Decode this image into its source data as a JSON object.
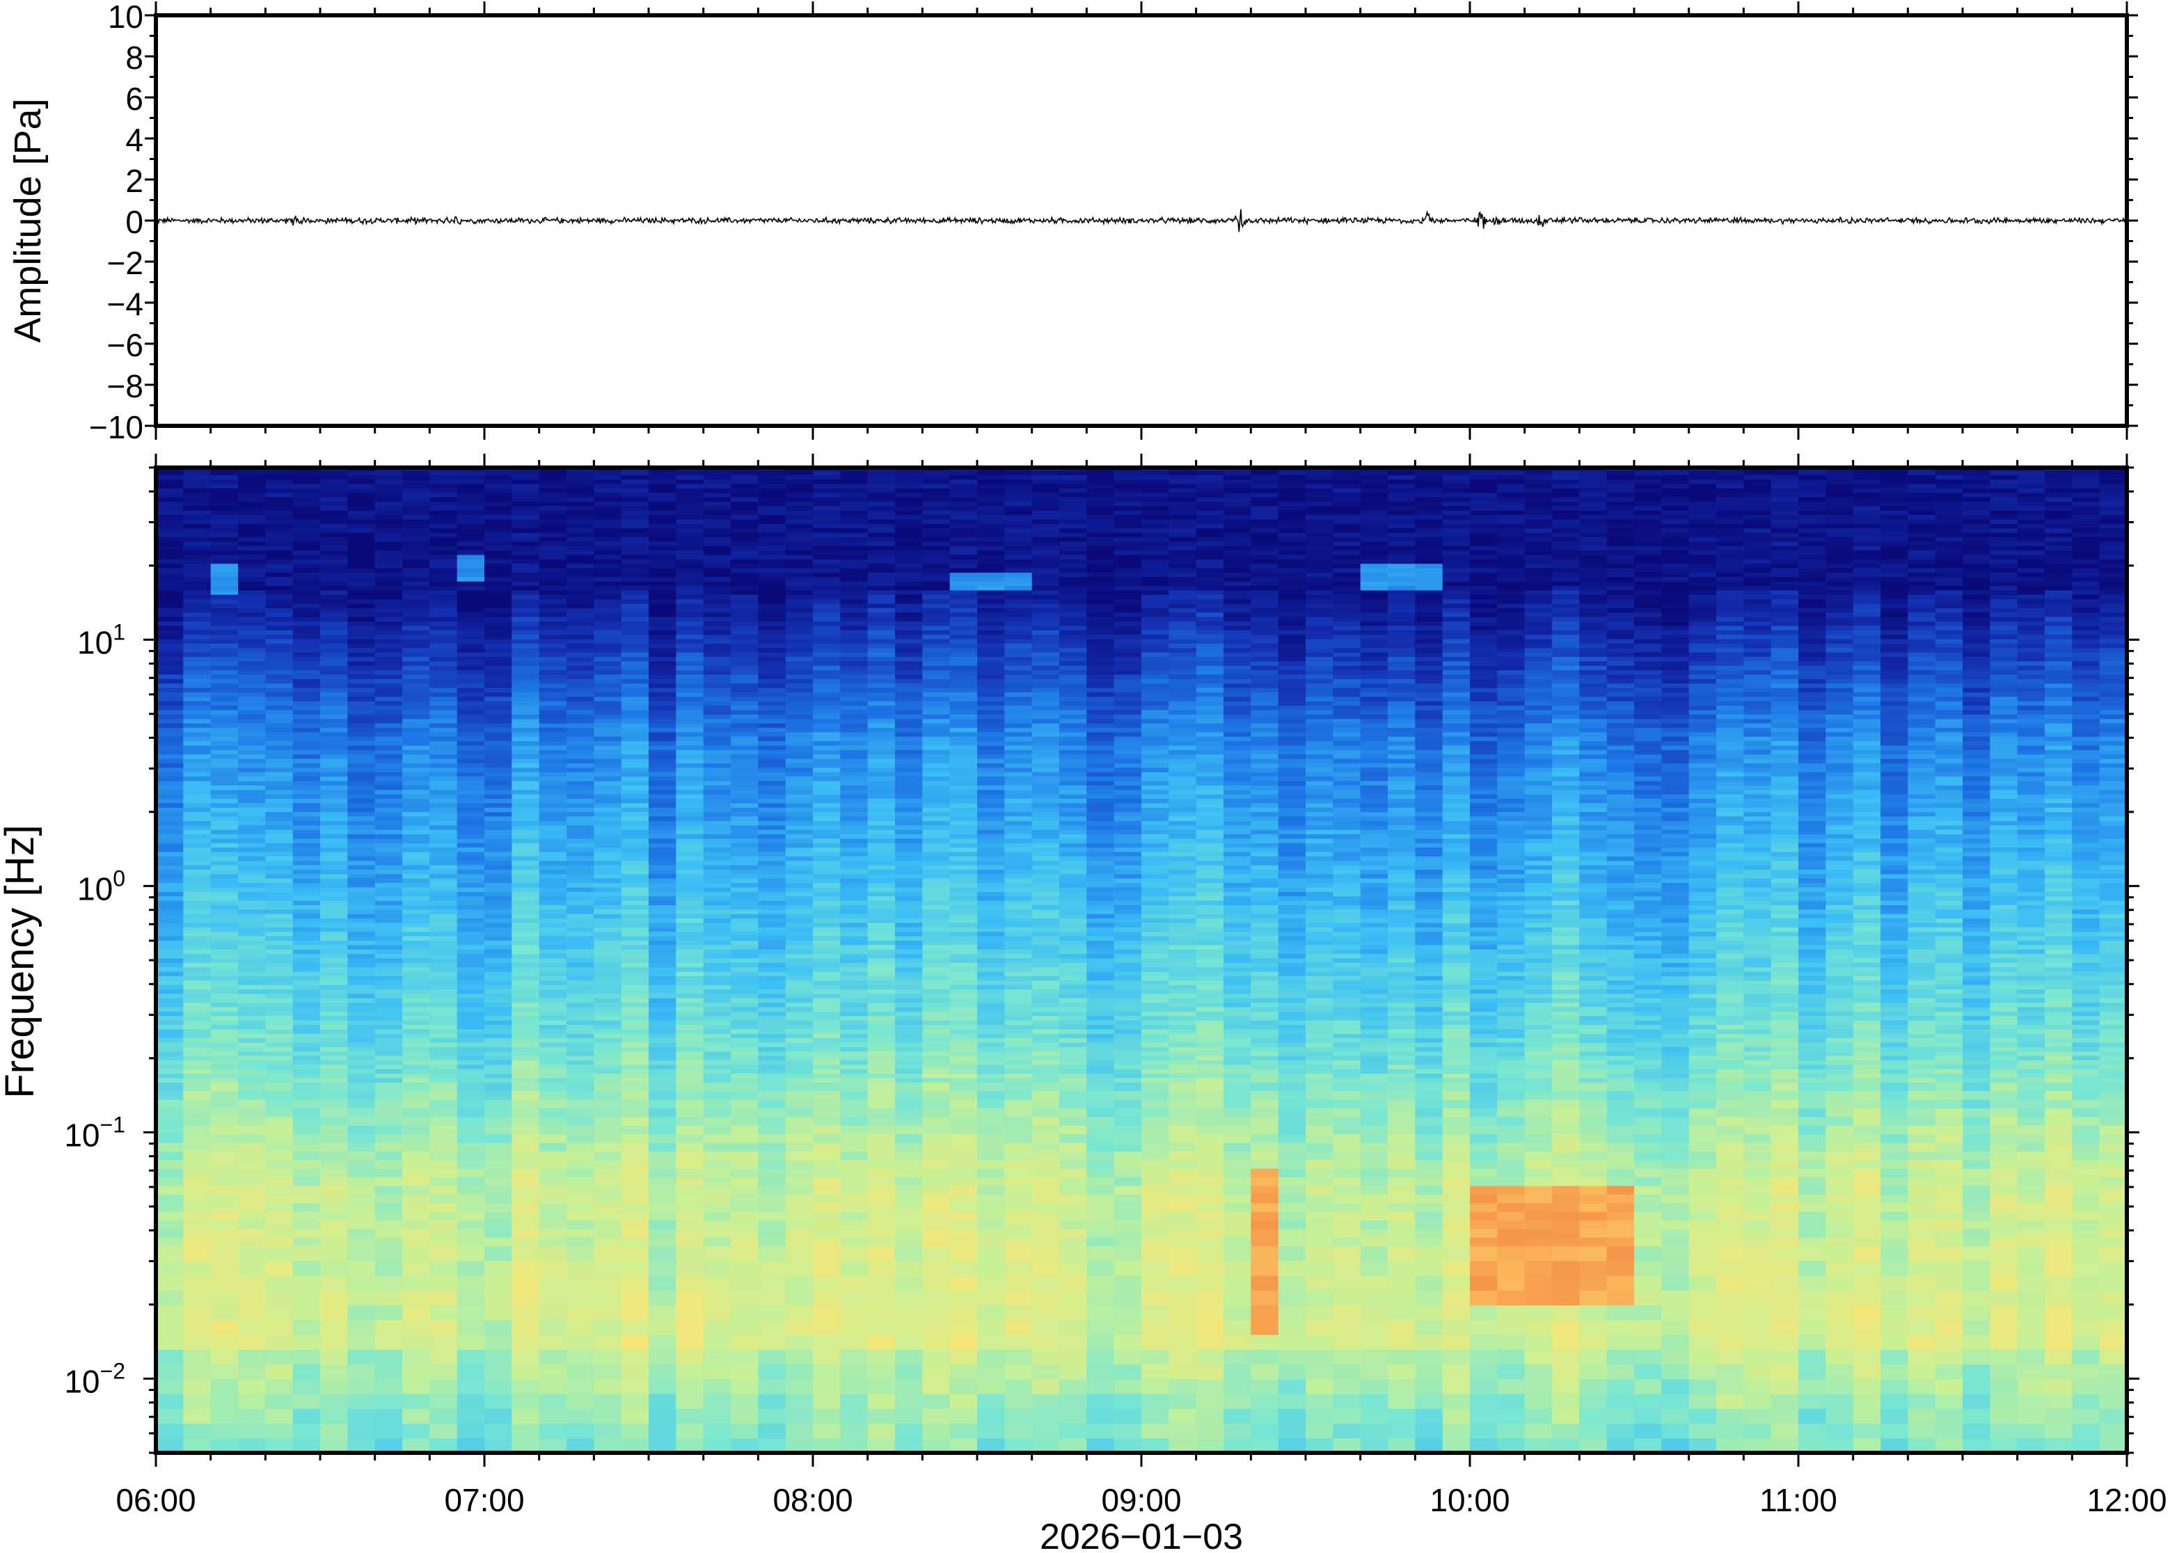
{
  "chart_data": [
    {
      "type": "line",
      "panel": "waveform",
      "ylabel": "Amplitude [Pa]",
      "ylim": [
        -10,
        10
      ],
      "yticks": [
        10,
        8,
        6,
        4,
        2,
        0,
        -2,
        -4,
        -6,
        -8,
        -10
      ],
      "ytick_labels": [
        "10",
        "8",
        "6",
        "4",
        "2",
        "0",
        "−2",
        "−4",
        "−6",
        "−8",
        "−10"
      ],
      "xlim": [
        "06:00",
        "12:00"
      ],
      "baseline": 0,
      "typical_noise_amplitude": 0.12,
      "events": [
        {
          "time": "06:25",
          "amplitude": 0.25
        },
        {
          "time": "06:55",
          "amplitude": 0.2
        },
        {
          "time": "09:18",
          "amplitude": 0.7
        },
        {
          "time": "09:52",
          "amplitude": 0.5
        },
        {
          "time": "10:02",
          "amplitude": 0.55
        },
        {
          "time": "10:05",
          "amplitude": 0.3
        },
        {
          "time": "10:13",
          "amplitude": 0.45
        },
        {
          "time": "10:20",
          "amplitude": 0.3
        },
        {
          "time": "10:49",
          "amplitude": 0.25
        }
      ],
      "line_color": "#000000"
    },
    {
      "type": "heatmap",
      "panel": "spectrogram",
      "ylabel": "Frequency [Hz]",
      "yscale": "log",
      "ylim": [
        0.005,
        50
      ],
      "ytick_labels": [
        {
          "value": 10,
          "base": "10",
          "exp": "1"
        },
        {
          "value": 1,
          "base": "10",
          "exp": "0"
        },
        {
          "value": 0.1,
          "base": "10",
          "exp": "−1"
        },
        {
          "value": 0.01,
          "base": "10",
          "exp": "−2"
        }
      ],
      "xlabel": "2026−01−03",
      "xticks": [
        "06:00",
        "07:00",
        "08:00",
        "09:00",
        "10:00",
        "11:00",
        "12:00"
      ],
      "xlim": [
        "06:00",
        "12:00"
      ],
      "colormap": [
        "#0a0a7a",
        "#1432b4",
        "#1e78e6",
        "#3cbef5",
        "#78e6d2",
        "#c8f096",
        "#f5e678",
        "#fab45a",
        "#f07838"
      ],
      "features": [
        {
          "description_time": "09:20",
          "freq_range_hz": [
            0.015,
            0.07
          ],
          "level": "high"
        },
        {
          "description_time": "10:00-10:30",
          "freq_range_hz": [
            0.02,
            0.06
          ],
          "level": "high"
        },
        {
          "description_time": "06:10",
          "freq_range_hz": [
            15,
            20
          ],
          "level": "medium"
        },
        {
          "description_time": "06:55",
          "freq_range_hz": [
            17,
            22
          ],
          "level": "medium"
        },
        {
          "description_time": "08:25-08:40",
          "freq_range_hz": [
            16,
            19
          ],
          "level": "medium"
        },
        {
          "description_time": "09:40-09:55",
          "freq_range_hz": [
            16,
            20
          ],
          "level": "medium"
        }
      ]
    }
  ]
}
